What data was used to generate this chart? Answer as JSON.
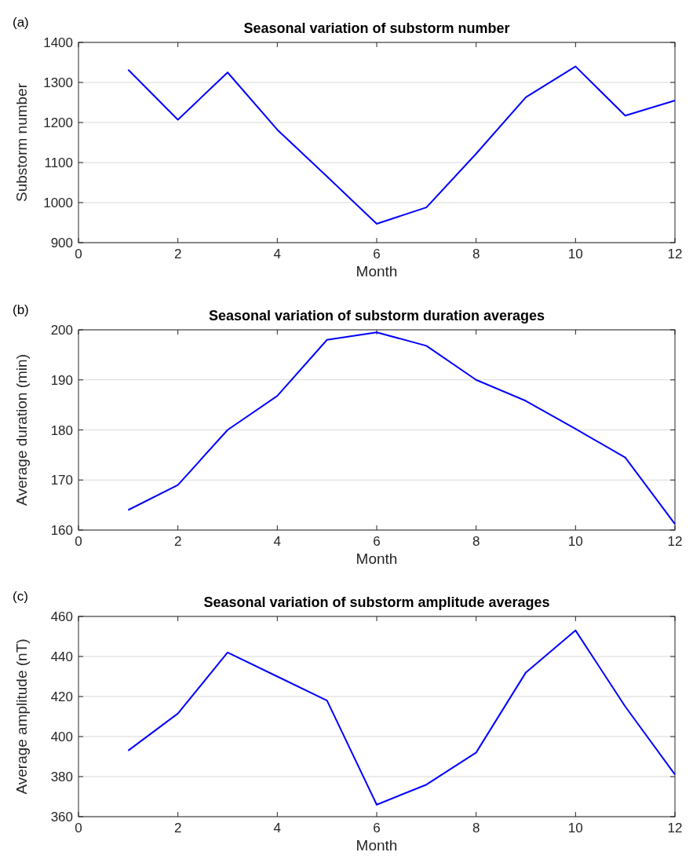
{
  "chart_data": [
    {
      "type": "line",
      "title": "Seasonal variation of substorm number",
      "xlabel": "Month",
      "ylabel": "Substorm number",
      "annotations": [
        "(a)"
      ],
      "x": [
        1,
        2,
        3,
        4,
        5,
        6,
        7,
        8,
        9,
        10,
        11,
        12
      ],
      "series": [
        {
          "color": "#0000ff",
          "values": [
            1332,
            1207,
            1325,
            1182,
            1065,
            947,
            988,
            1122,
            1263,
            1340,
            1217,
            1255
          ]
        }
      ],
      "xlim": [
        0,
        12
      ],
      "xticks": [
        0,
        2,
        4,
        6,
        8,
        10,
        12
      ],
      "ylim": [
        900,
        1400
      ],
      "yticks": [
        900,
        1000,
        1100,
        1200,
        1300,
        1400
      ],
      "grid": "y"
    },
    {
      "type": "line",
      "title": "Seasonal variation of substorm duration averages",
      "xlabel": "Month",
      "ylabel": "Average duration (min)",
      "annotations": [
        "(b)"
      ],
      "x": [
        1,
        2,
        3,
        4,
        5,
        6,
        7,
        8,
        9,
        10,
        11,
        12
      ],
      "series": [
        {
          "color": "#0000ff",
          "values": [
            164,
            169,
            180,
            186.8,
            198,
            199.5,
            196.8,
            190,
            185.8,
            180.2,
            174.5,
            161.2
          ]
        }
      ],
      "xlim": [
        0,
        12
      ],
      "xticks": [
        0,
        2,
        4,
        6,
        8,
        10,
        12
      ],
      "ylim": [
        160,
        200
      ],
      "yticks": [
        160,
        170,
        180,
        190,
        200
      ],
      "grid": "y"
    },
    {
      "type": "line",
      "title": "Seasonal variation of substorm amplitude averages",
      "xlabel": "Month",
      "ylabel": "Average amplitude (nT)",
      "annotations": [
        "(c)"
      ],
      "x": [
        1,
        2,
        3,
        4,
        5,
        6,
        7,
        8,
        9,
        10,
        11,
        12
      ],
      "series": [
        {
          "color": "#0000ff",
          "values": [
            393,
            411.5,
            442,
            430,
            418,
            366,
            376,
            392,
            432,
            453,
            415,
            381
          ]
        }
      ],
      "xlim": [
        0,
        12
      ],
      "xticks": [
        0,
        2,
        4,
        6,
        8,
        10,
        12
      ],
      "ylim": [
        360,
        460
      ],
      "yticks": [
        360,
        380,
        400,
        420,
        440,
        460
      ],
      "grid": "y"
    }
  ]
}
